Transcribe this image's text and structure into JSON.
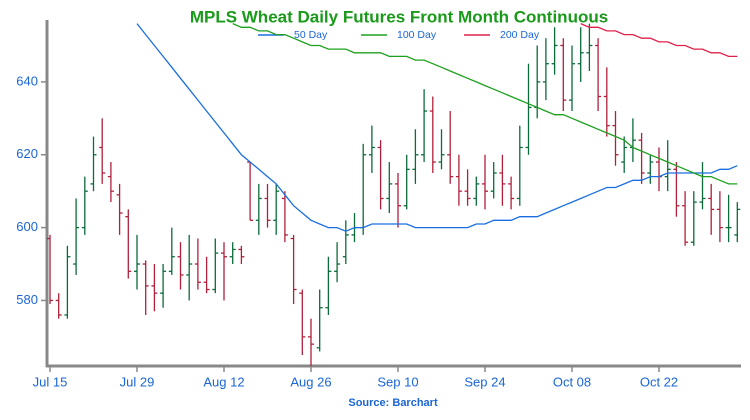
{
  "chart_data": {
    "type": "ohlc",
    "title": "MPLS Wheat Daily Futures Front Month Continuous",
    "source": "Source: Barchart",
    "categories": [
      "Jul 15",
      null,
      null,
      null,
      null,
      null,
      null,
      null,
      null,
      null,
      "Jul 29",
      null,
      null,
      null,
      null,
      null,
      null,
      null,
      null,
      null,
      "Aug 12",
      null,
      null,
      null,
      null,
      null,
      null,
      null,
      null,
      null,
      "Aug 26",
      null,
      null,
      null,
      null,
      null,
      null,
      null,
      null,
      null,
      "Sep 10",
      null,
      null,
      null,
      null,
      null,
      null,
      null,
      null,
      null,
      "Sep 24",
      null,
      null,
      null,
      null,
      null,
      null,
      null,
      null,
      null,
      "Oct 08",
      null,
      null,
      null,
      null,
      null,
      null,
      null,
      null,
      null,
      "Oct 22",
      null,
      null,
      null,
      null,
      null,
      null,
      null,
      null,
      null
    ],
    "open": [
      597,
      580,
      576,
      590,
      600,
      612,
      622,
      614,
      609,
      603,
      588,
      590,
      584,
      582,
      588,
      592,
      587,
      590,
      585,
      583,
      593,
      592,
      594,
      618,
      602,
      608,
      602,
      608,
      597,
      582,
      570,
      567,
      578,
      588,
      592,
      598,
      600,
      620,
      622,
      608,
      612,
      606,
      616,
      620,
      632,
      618,
      620,
      614,
      610,
      608,
      612,
      610,
      615,
      612,
      608,
      622,
      633,
      640,
      645,
      650,
      635,
      645,
      648,
      650,
      636,
      628,
      618,
      622,
      624,
      615,
      618,
      614,
      616,
      606,
      596,
      607,
      608,
      605,
      600,
      598
    ],
    "high": [
      598,
      582,
      595,
      608,
      614,
      625,
      630,
      618,
      612,
      605,
      598,
      591,
      590,
      590,
      600,
      596,
      598,
      597,
      592,
      597,
      596,
      596,
      595,
      618,
      612,
      612,
      612,
      610,
      598,
      583,
      575,
      583,
      592,
      596,
      602,
      604,
      623,
      628,
      624,
      618,
      615,
      620,
      627,
      638,
      636,
      627,
      632,
      620,
      616,
      614,
      620,
      618,
      620,
      614,
      628,
      645,
      650,
      652,
      655,
      652,
      650,
      655,
      656,
      652,
      644,
      632,
      625,
      630,
      626,
      620,
      622,
      624,
      618,
      610,
      610,
      618,
      612,
      610,
      609,
      607
    ],
    "low": [
      579,
      575,
      575,
      587,
      598,
      610,
      612,
      607,
      598,
      586,
      583,
      576,
      577,
      578,
      587,
      583,
      580,
      583,
      582,
      582,
      580,
      590,
      590,
      602,
      598,
      600,
      598,
      596,
      579,
      565,
      562,
      566,
      576,
      585,
      590,
      596,
      598,
      615,
      605,
      604,
      600,
      605,
      612,
      618,
      615,
      616,
      612,
      606,
      606,
      606,
      605,
      608,
      606,
      605,
      606,
      620,
      630,
      635,
      642,
      632,
      632,
      640,
      643,
      632,
      625,
      617,
      615,
      618,
      612,
      612,
      610,
      610,
      603,
      595,
      595,
      605,
      598,
      596,
      596,
      596
    ],
    "close": [
      580,
      576,
      592,
      600,
      610,
      620,
      615,
      610,
      604,
      588,
      590,
      584,
      582,
      588,
      592,
      587,
      590,
      585,
      583,
      593,
      592,
      594,
      592,
      602,
      608,
      602,
      610,
      598,
      583,
      570,
      568,
      578,
      588,
      590,
      598,
      600,
      620,
      622,
      608,
      612,
      606,
      616,
      620,
      632,
      618,
      620,
      614,
      610,
      608,
      612,
      610,
      615,
      612,
      608,
      622,
      633,
      640,
      645,
      650,
      635,
      645,
      648,
      650,
      636,
      628,
      620,
      622,
      624,
      615,
      618,
      614,
      616,
      606,
      596,
      607,
      608,
      605,
      600,
      600,
      605
    ],
    "up_color": "#0b6b3a",
    "down_color": "#b0203a",
    "series": [
      {
        "name": "50 Day",
        "color": "#1a6fe0",
        "values": [
          null,
          null,
          null,
          null,
          null,
          null,
          null,
          null,
          null,
          null,
          656,
          653,
          650,
          647,
          644,
          641,
          638,
          635,
          632,
          629,
          626,
          623,
          620,
          618,
          616,
          614,
          612,
          609,
          606,
          604,
          602,
          601,
          600,
          600,
          599,
          600,
          600,
          601,
          601,
          601,
          601,
          601,
          600,
          600,
          600,
          600,
          600,
          600,
          600,
          601,
          601,
          602,
          602,
          602,
          603,
          603,
          603,
          604,
          605,
          606,
          607,
          608,
          609,
          610,
          611,
          611,
          612,
          613,
          613,
          614,
          614,
          615,
          615,
          615,
          615,
          615,
          615,
          616,
          616,
          617
        ]
      },
      {
        "name": "100 Day",
        "color": "#1ea01e",
        "values": [
          null,
          null,
          null,
          null,
          null,
          null,
          null,
          null,
          null,
          null,
          null,
          null,
          null,
          null,
          null,
          null,
          null,
          null,
          null,
          null,
          null,
          656,
          655,
          655,
          654,
          654,
          653,
          653,
          652,
          651,
          650,
          650,
          649,
          649,
          649,
          648,
          648,
          648,
          648,
          647,
          647,
          647,
          646,
          646,
          645,
          644,
          643,
          642,
          641,
          640,
          639,
          638,
          637,
          636,
          635,
          634,
          633,
          632,
          631,
          631,
          630,
          629,
          628,
          627,
          626,
          625,
          624,
          622,
          621,
          620,
          619,
          618,
          617,
          616,
          615,
          614,
          614,
          613,
          612,
          612
        ]
      },
      {
        "name": "200 Day",
        "color": "#e0204a",
        "values": [
          null,
          null,
          null,
          null,
          null,
          null,
          null,
          null,
          null,
          null,
          null,
          null,
          null,
          null,
          null,
          null,
          null,
          null,
          null,
          null,
          null,
          null,
          null,
          null,
          null,
          null,
          null,
          null,
          null,
          null,
          null,
          null,
          null,
          null,
          null,
          null,
          null,
          null,
          null,
          null,
          null,
          null,
          null,
          null,
          null,
          null,
          null,
          null,
          null,
          null,
          null,
          null,
          null,
          null,
          null,
          null,
          null,
          null,
          null,
          null,
          null,
          656,
          655,
          655,
          654,
          654,
          653,
          653,
          652,
          652,
          651,
          651,
          650,
          650,
          649,
          649,
          648,
          648,
          647,
          647
        ]
      }
    ],
    "ylim": [
      562,
      657
    ],
    "yticks": [
      580,
      600,
      620,
      640
    ]
  }
}
